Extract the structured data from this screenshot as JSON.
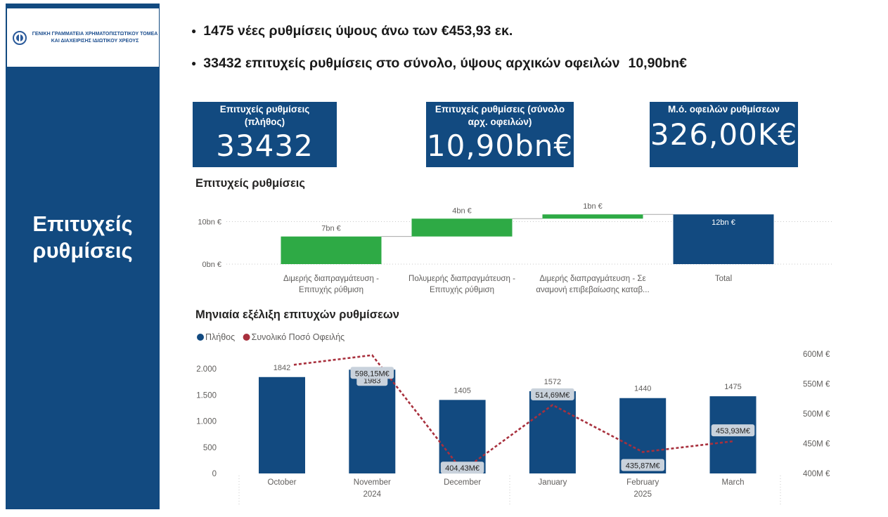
{
  "sidebar": {
    "logo_line1": "ΓΕΝΙΚΗ ΓΡΑΜΜΑΤΕΙΑ ΧΡΗΜΑΤΟΠΙΣΤΩΤΙΚΟΥ ΤΟΜΕΑ",
    "logo_line2": "ΚΑΙ ΔΙΑΧΕΙΡΙΣΗΣ ΙΔΙΩΤΙΚΟΥ ΧΡΕΟΥΣ",
    "title_line1": "Επιτυχείς",
    "title_line2": "ρυθμίσεις",
    "color": "#124a80"
  },
  "bullets": [
    {
      "text": "1475 νέες ρυθμίσεις ύψους άνω των €453,93 εκ.",
      "tail": ""
    },
    {
      "text": "33432 επιτυχείς ρυθμίσεις στο σύνολο, ύψους αρχικών οφειλών",
      "tail": "10,90bn€"
    }
  ],
  "kpis": [
    {
      "label_line1": "Επιτυχείς ρυθμίσεις",
      "label_line2": "(πλήθος)",
      "value": "33432"
    },
    {
      "label_line1": "Επιτυχείς ρυθμίσεις (σύνολο",
      "label_line2": "αρχ. οφειλών)",
      "value": "10,90bn€"
    },
    {
      "label_line1": "Μ.ό. οφειλών ρυθμίσεων",
      "label_line2": "",
      "value": "326,00K€"
    }
  ],
  "chart_data": [
    {
      "type": "bar",
      "subtype": "waterfall",
      "title": "Επιτυχείς ρυθμίσεις",
      "categories": [
        [
          "Διμερής διαπραγμάτευση -",
          "Επιτυχής ρύθμιση"
        ],
        [
          "Πολυμερής διαπραγμάτευση -",
          "Επιτυχής ρύθμιση"
        ],
        [
          "Διμερής διαπραγμάτευση - Σε",
          "αναμονή επιβεβαίωσης καταβ..."
        ],
        [
          "Total"
        ]
      ],
      "values": [
        6.5,
        4.2,
        1.0,
        11.7
      ],
      "labels": [
        "7bn €",
        "4bn €",
        "1bn €",
        "12bn €"
      ],
      "is_total": [
        false,
        false,
        false,
        true
      ],
      "y_ticks": [
        {
          "value": 0,
          "label": "0bn €"
        },
        {
          "value": 10,
          "label": "10bn €"
        }
      ],
      "ylim": [
        0,
        12.5
      ],
      "colors": {
        "increase": "#2eaa45",
        "total": "#124a80",
        "connector": "#a8a8a8"
      }
    },
    {
      "type": "bar",
      "subtype": "bar+line combo",
      "title": "Μηνιαία εξέλιξη επιτυχών ρυθμίσεων",
      "legend": [
        {
          "name": "Πλήθος",
          "color": "#124a80"
        },
        {
          "name": "Συνολικό Ποσό Οφειλής",
          "color": "#a8303d"
        }
      ],
      "legend_position": "top-left",
      "categories": [
        "October",
        "November",
        "December",
        "January",
        "February",
        "March"
      ],
      "year_labels": [
        {
          "label": "2024",
          "under": "November"
        },
        {
          "label": "2025",
          "under": "February"
        }
      ],
      "series": [
        {
          "name": "Πλήθος",
          "kind": "bar",
          "axis": "left",
          "values": [
            1842,
            1983,
            1405,
            1572,
            1440,
            1475
          ],
          "labels": [
            "1842",
            "1983",
            "1405",
            "1572",
            "1440",
            "1475"
          ]
        },
        {
          "name": "Συνολικό Ποσό Οφειλής",
          "kind": "line",
          "style": "dashed",
          "axis": "right",
          "values": [
            582,
            598.15,
            404.43,
            514.69,
            435.87,
            453.93
          ],
          "labels": [
            "",
            "598,15M€",
            "404,43M€",
            "514,69M€",
            "435,87M€",
            "453,93M€"
          ]
        }
      ],
      "y_left": {
        "lim": [
          0,
          2200
        ],
        "ticks": [
          {
            "value": 0,
            "label": "0"
          },
          {
            "value": 500,
            "label": "500"
          },
          {
            "value": 1000,
            "label": "1.000"
          },
          {
            "value": 1500,
            "label": "1.500"
          },
          {
            "value": 2000,
            "label": "2.000"
          }
        ]
      },
      "y_right": {
        "lim": [
          400,
          600
        ],
        "ticks": [
          {
            "value": 400,
            "label": "400M €"
          },
          {
            "value": 450,
            "label": "450M €"
          },
          {
            "value": 500,
            "label": "500M €"
          },
          {
            "value": 550,
            "label": "550M €"
          },
          {
            "value": 600,
            "label": "600M €"
          }
        ]
      }
    }
  ]
}
